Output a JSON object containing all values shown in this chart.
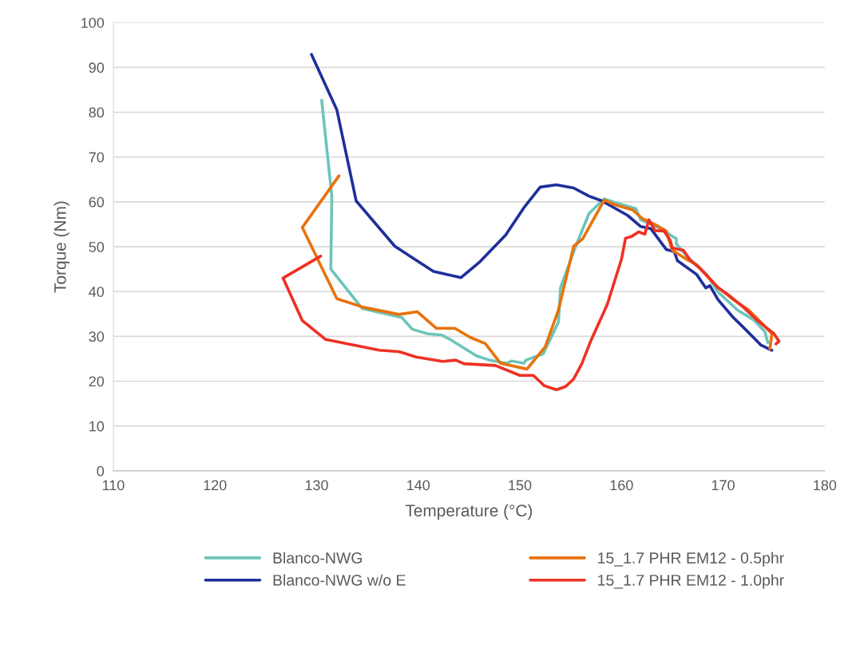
{
  "chart_data": {
    "type": "line",
    "xlabel": "Temperature (°C)",
    "ylabel": "Torque (Nm)",
    "xlim": [
      110,
      180
    ],
    "xticks": [
      110,
      120,
      130,
      140,
      150,
      160,
      170,
      180
    ],
    "ylim": [
      0,
      100
    ],
    "yticks": [
      0,
      10,
      20,
      30,
      40,
      50,
      60,
      70,
      80,
      90,
      100
    ],
    "grid": "y",
    "legend": "bottom",
    "marker": "none",
    "line_style": "solid",
    "series": [
      {
        "name": "Blanco-NWG",
        "color": "#6cc5b8",
        "x": [
          130.5,
          131.5,
          131.4,
          134.5,
          138.4,
          139.4,
          140.9,
          142.3,
          143.3,
          145.7,
          147.0,
          148.7,
          149.2,
          150.4,
          150.6,
          152.3,
          153.8,
          154.0,
          155.5,
          156.8,
          158.3,
          159.3,
          161.4,
          161.9,
          163.6,
          165.4,
          165.4,
          166.7,
          168.4,
          169.5,
          171.4,
          173.0,
          174.1,
          174.4
        ],
        "values": [
          82.7,
          61.3,
          45.0,
          36.2,
          34.2,
          31.6,
          30.6,
          30.3,
          29.1,
          25.7,
          24.7,
          24.0,
          24.5,
          24.0,
          24.7,
          26.1,
          33.2,
          40.8,
          50.1,
          57.4,
          60.7,
          59.9,
          58.5,
          56.0,
          54.3,
          51.8,
          50.6,
          47.2,
          43.8,
          39.9,
          35.9,
          33.7,
          31.1,
          28.6
        ]
      },
      {
        "name": "Blanco-NWG w/o E",
        "color": "#1f2f9a",
        "x": [
          129.5,
          132.0,
          133.9,
          137.7,
          141.5,
          144.2,
          146.1,
          148.6,
          150.4,
          152.0,
          153.6,
          155.3,
          156.8,
          158.1,
          160.6,
          161.9,
          162.9,
          164.4,
          165.2,
          165.5,
          167.4,
          168.3,
          168.7,
          169.5,
          171.0,
          172.0,
          173.7,
          174.8
        ],
        "values": [
          92.9,
          80.5,
          60.2,
          50.1,
          44.5,
          43.1,
          46.7,
          52.6,
          58.7,
          63.3,
          63.8,
          63.1,
          61.3,
          60.2,
          57.0,
          54.5,
          54.0,
          49.4,
          48.9,
          46.9,
          43.8,
          40.8,
          41.3,
          38.2,
          34.2,
          32.0,
          28.1,
          26.9
        ]
      },
      {
        "name": "15_1.7 PHR EM12 - 0.5phr",
        "color": "#e8720c",
        "x": [
          132.2,
          128.6,
          132.0,
          134.6,
          138.1,
          139.9,
          141.8,
          143.6,
          145.1,
          146.6,
          148.1,
          150.7,
          152.5,
          153.8,
          155.3,
          156.2,
          158.3,
          159.3,
          161.1,
          162.1,
          163.1,
          164.4,
          165.0,
          166.4,
          167.4,
          169.5,
          171.0,
          172.5,
          174.0,
          174.8,
          174.6
        ],
        "values": [
          65.8,
          54.3,
          38.4,
          36.5,
          34.9,
          35.5,
          31.8,
          31.8,
          29.8,
          28.4,
          24.0,
          22.7,
          27.7,
          35.9,
          50.1,
          51.8,
          60.4,
          59.4,
          58.2,
          56.2,
          55.2,
          53.5,
          49.2,
          47.2,
          46.0,
          40.9,
          38.2,
          35.9,
          32.5,
          30.6,
          27.2
        ]
      },
      {
        "name": "15_1.7 PHR EM12 - 1.0phr",
        "color": "#ee3124",
        "x": [
          130.4,
          126.7,
          128.6,
          130.9,
          136.2,
          138.1,
          139.8,
          142.4,
          143.7,
          144.5,
          147.6,
          150.0,
          151.3,
          151.7,
          152.4,
          153.6,
          154.5,
          155.3,
          156.1,
          157.0,
          158.6,
          160.0,
          160.4,
          161.0,
          161.7,
          162.3,
          162.7,
          163.3,
          164.2,
          164.8,
          165.0,
          166.1,
          166.7,
          167.7,
          169.5,
          170.5,
          172.0,
          173.5,
          175.0,
          175.5,
          175.2
        ],
        "values": [
          47.9,
          43.0,
          33.5,
          29.3,
          26.9,
          26.6,
          25.4,
          24.4,
          24.7,
          23.9,
          23.5,
          21.3,
          21.3,
          20.5,
          19.0,
          18.1,
          18.8,
          20.5,
          23.9,
          29.1,
          37.1,
          47.2,
          51.9,
          52.3,
          53.3,
          52.8,
          56.0,
          53.6,
          53.5,
          51.4,
          49.7,
          49.2,
          47.2,
          45.2,
          40.9,
          39.3,
          36.5,
          33.3,
          30.6,
          28.9,
          28.3
        ]
      }
    ]
  }
}
